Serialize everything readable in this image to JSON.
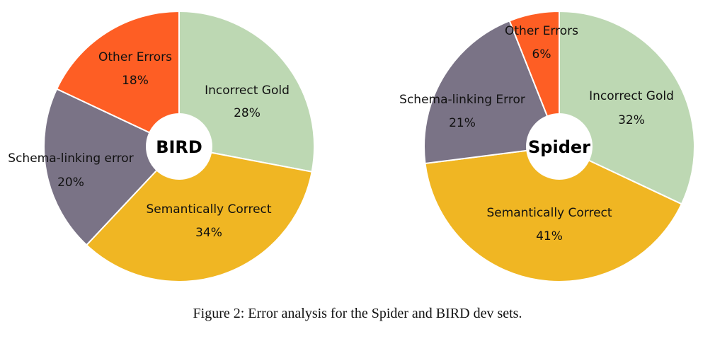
{
  "caption": "Figure 2:  Error analysis for the Spider and BIRD dev sets.",
  "colors": {
    "Incorrect Gold": "#bdd8b3",
    "Semantically Correct": "#f0b623",
    "Schema-linking": "#7a7386",
    "Other Errors": "#fe5e24"
  },
  "chart_data": [
    {
      "type": "pie",
      "title": "BIRD",
      "slices": [
        {
          "label": "Incorrect Gold",
          "pct_text": "28%",
          "value": 28,
          "color_key": "Incorrect Gold"
        },
        {
          "label": "Semantically Correct",
          "pct_text": "34%",
          "value": 34,
          "color_key": "Semantically Correct"
        },
        {
          "label": "Schema-linking error",
          "pct_text": "20%",
          "value": 20,
          "color_key": "Schema-linking"
        },
        {
          "label": "Other Errors",
          "pct_text": "18%",
          "value": 18,
          "color_key": "Other Errors"
        }
      ]
    },
    {
      "type": "pie",
      "title": "Spider",
      "slices": [
        {
          "label": "Incorrect Gold",
          "pct_text": "32%",
          "value": 32,
          "color_key": "Incorrect Gold"
        },
        {
          "label": "Semantically Correct",
          "pct_text": "41%",
          "value": 41,
          "color_key": "Semantically Correct"
        },
        {
          "label": "Schema-linking Error",
          "pct_text": "21%",
          "value": 21,
          "color_key": "Schema-linking"
        },
        {
          "label": "Other Errors",
          "pct_text": "6%",
          "value": 6,
          "color_key": "Other Errors"
        }
      ]
    }
  ]
}
